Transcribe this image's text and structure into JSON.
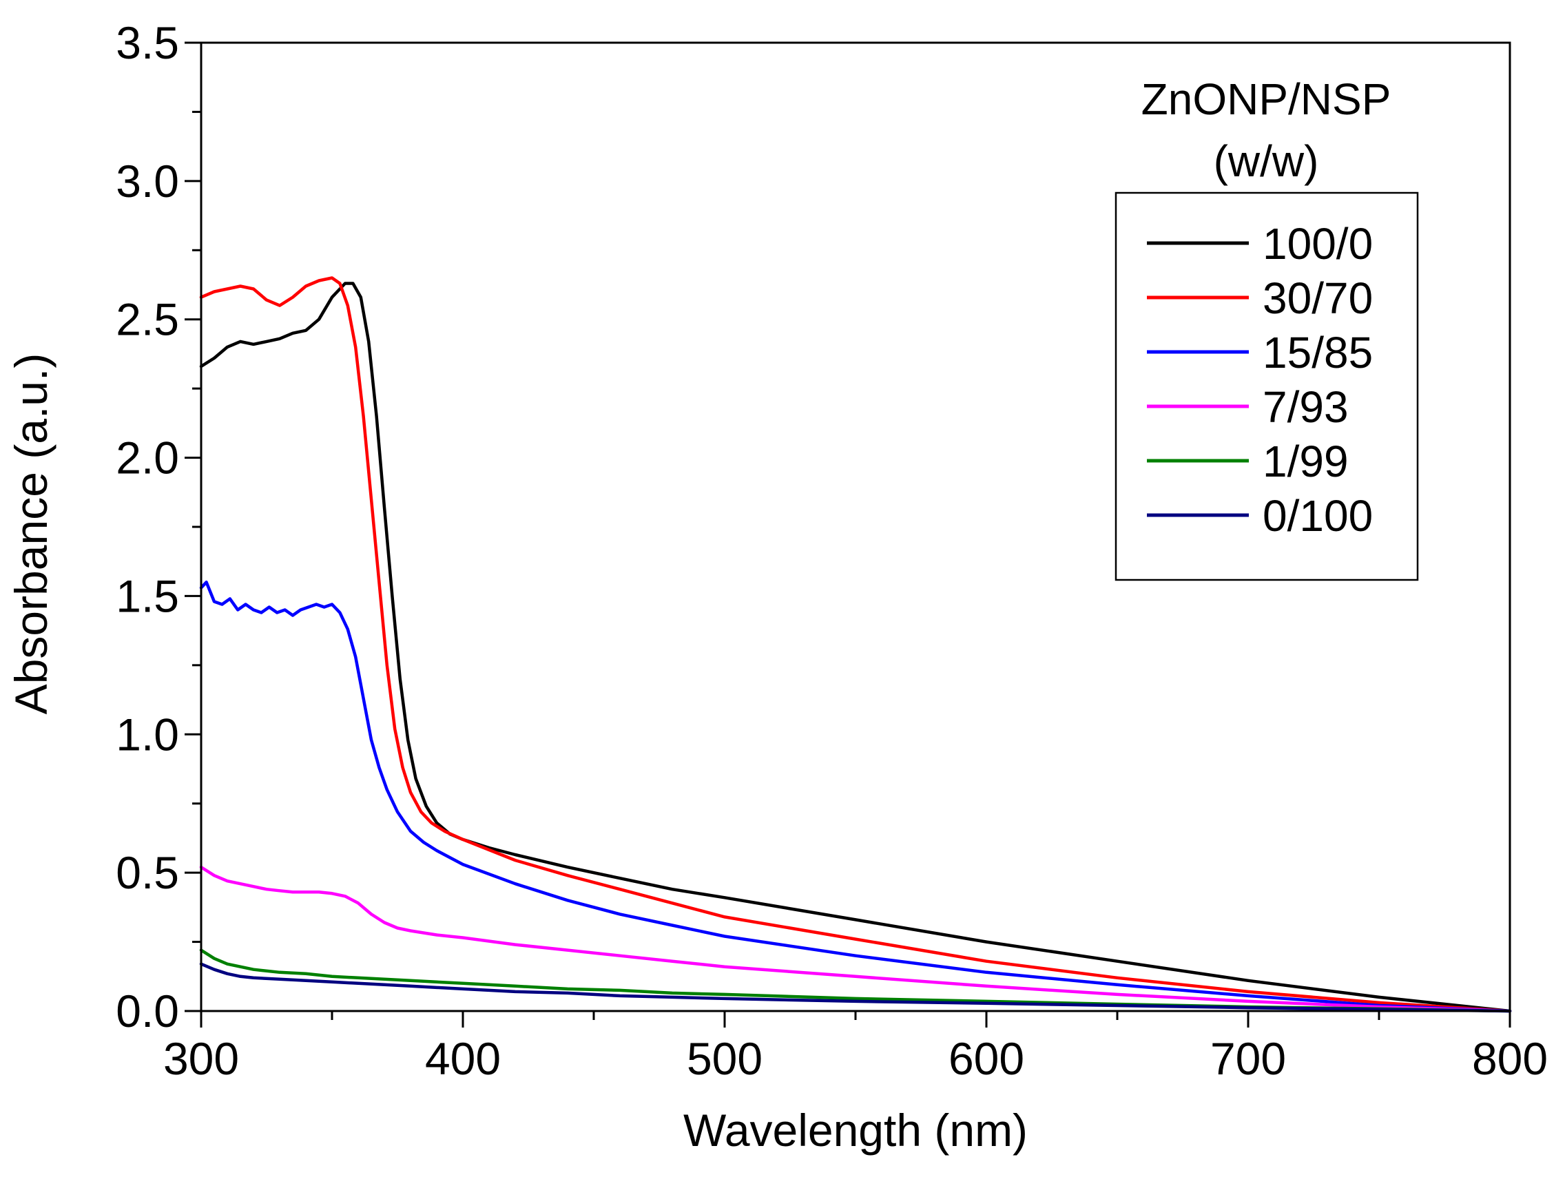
{
  "chart_data": {
    "type": "line",
    "title": "",
    "xlabel": "Wavelength (nm)",
    "ylabel": "Absorbance (a.u.)",
    "xlim": [
      300,
      800
    ],
    "ylim": [
      0,
      3.5
    ],
    "x_ticks": [
      300,
      400,
      500,
      600,
      700,
      800
    ],
    "x_tick_labels": [
      "300",
      "400",
      "500",
      "600",
      "700",
      "800"
    ],
    "y_ticks": [
      0,
      0.5,
      1.0,
      1.5,
      2.0,
      2.5,
      3.0,
      3.5
    ],
    "y_tick_labels": [
      "0.0",
      "0.5",
      "1.0",
      "1.5",
      "2.0",
      "2.5",
      "3.0",
      "3.5"
    ],
    "grid": false,
    "legend": {
      "title_line1": "ZnONP/NSP",
      "title_line2": "(w/w)",
      "placement": "top-right"
    },
    "series": [
      {
        "name": "100/0",
        "color": "#000000",
        "points": [
          [
            300,
            2.33
          ],
          [
            305,
            2.36
          ],
          [
            310,
            2.4
          ],
          [
            315,
            2.42
          ],
          [
            320,
            2.41
          ],
          [
            325,
            2.42
          ],
          [
            330,
            2.43
          ],
          [
            335,
            2.45
          ],
          [
            340,
            2.46
          ],
          [
            345,
            2.5
          ],
          [
            350,
            2.58
          ],
          [
            355,
            2.63
          ],
          [
            358,
            2.63
          ],
          [
            361,
            2.58
          ],
          [
            364,
            2.42
          ],
          [
            367,
            2.15
          ],
          [
            370,
            1.82
          ],
          [
            373,
            1.5
          ],
          [
            376,
            1.2
          ],
          [
            379,
            0.98
          ],
          [
            382,
            0.84
          ],
          [
            386,
            0.74
          ],
          [
            390,
            0.68
          ],
          [
            395,
            0.64
          ],
          [
            400,
            0.62
          ],
          [
            410,
            0.59
          ],
          [
            420,
            0.565
          ],
          [
            440,
            0.52
          ],
          [
            460,
            0.48
          ],
          [
            480,
            0.44
          ],
          [
            500,
            0.41
          ],
          [
            550,
            0.33
          ],
          [
            600,
            0.25
          ],
          [
            650,
            0.18
          ],
          [
            700,
            0.11
          ],
          [
            750,
            0.05
          ],
          [
            800,
            0.0
          ]
        ]
      },
      {
        "name": "30/70",
        "color": "#ff0000",
        "points": [
          [
            300,
            2.58
          ],
          [
            305,
            2.6
          ],
          [
            310,
            2.61
          ],
          [
            315,
            2.62
          ],
          [
            320,
            2.61
          ],
          [
            325,
            2.57
          ],
          [
            330,
            2.55
          ],
          [
            335,
            2.58
          ],
          [
            340,
            2.62
          ],
          [
            345,
            2.64
          ],
          [
            350,
            2.65
          ],
          [
            353,
            2.63
          ],
          [
            356,
            2.55
          ],
          [
            359,
            2.4
          ],
          [
            362,
            2.15
          ],
          [
            365,
            1.85
          ],
          [
            368,
            1.55
          ],
          [
            371,
            1.25
          ],
          [
            374,
            1.02
          ],
          [
            377,
            0.88
          ],
          [
            380,
            0.79
          ],
          [
            384,
            0.72
          ],
          [
            388,
            0.68
          ],
          [
            393,
            0.65
          ],
          [
            400,
            0.62
          ],
          [
            420,
            0.545
          ],
          [
            440,
            0.49
          ],
          [
            460,
            0.44
          ],
          [
            480,
            0.39
          ],
          [
            500,
            0.34
          ],
          [
            550,
            0.26
          ],
          [
            600,
            0.18
          ],
          [
            650,
            0.12
          ],
          [
            700,
            0.07
          ],
          [
            750,
            0.03
          ],
          [
            800,
            0.0
          ]
        ]
      },
      {
        "name": "15/85",
        "color": "#0000ff",
        "points": [
          [
            300,
            1.53
          ],
          [
            302,
            1.55
          ],
          [
            305,
            1.48
          ],
          [
            308,
            1.47
          ],
          [
            311,
            1.49
          ],
          [
            314,
            1.45
          ],
          [
            317,
            1.47
          ],
          [
            320,
            1.45
          ],
          [
            323,
            1.44
          ],
          [
            326,
            1.46
          ],
          [
            329,
            1.44
          ],
          [
            332,
            1.45
          ],
          [
            335,
            1.43
          ],
          [
            338,
            1.45
          ],
          [
            341,
            1.46
          ],
          [
            344,
            1.47
          ],
          [
            347,
            1.46
          ],
          [
            350,
            1.47
          ],
          [
            353,
            1.44
          ],
          [
            356,
            1.38
          ],
          [
            359,
            1.28
          ],
          [
            362,
            1.13
          ],
          [
            365,
            0.98
          ],
          [
            368,
            0.88
          ],
          [
            371,
            0.8
          ],
          [
            375,
            0.72
          ],
          [
            380,
            0.65
          ],
          [
            385,
            0.61
          ],
          [
            390,
            0.58
          ],
          [
            400,
            0.53
          ],
          [
            420,
            0.46
          ],
          [
            440,
            0.4
          ],
          [
            460,
            0.35
          ],
          [
            480,
            0.31
          ],
          [
            500,
            0.27
          ],
          [
            550,
            0.2
          ],
          [
            600,
            0.14
          ],
          [
            650,
            0.095
          ],
          [
            700,
            0.055
          ],
          [
            750,
            0.02
          ],
          [
            800,
            0.0
          ]
        ]
      },
      {
        "name": "7/93",
        "color": "#ff00ff",
        "points": [
          [
            300,
            0.52
          ],
          [
            305,
            0.49
          ],
          [
            310,
            0.47
          ],
          [
            315,
            0.46
          ],
          [
            320,
            0.45
          ],
          [
            325,
            0.44
          ],
          [
            330,
            0.435
          ],
          [
            335,
            0.43
          ],
          [
            340,
            0.43
          ],
          [
            345,
            0.43
          ],
          [
            350,
            0.425
          ],
          [
            355,
            0.415
          ],
          [
            360,
            0.39
          ],
          [
            365,
            0.35
          ],
          [
            370,
            0.32
          ],
          [
            375,
            0.3
          ],
          [
            380,
            0.29
          ],
          [
            390,
            0.275
          ],
          [
            400,
            0.265
          ],
          [
            420,
            0.24
          ],
          [
            440,
            0.22
          ],
          [
            460,
            0.2
          ],
          [
            480,
            0.18
          ],
          [
            500,
            0.16
          ],
          [
            550,
            0.125
          ],
          [
            600,
            0.09
          ],
          [
            650,
            0.06
          ],
          [
            700,
            0.035
          ],
          [
            750,
            0.015
          ],
          [
            800,
            0.0
          ]
        ]
      },
      {
        "name": "1/99",
        "color": "#008000",
        "points": [
          [
            300,
            0.22
          ],
          [
            305,
            0.19
          ],
          [
            310,
            0.17
          ],
          [
            315,
            0.16
          ],
          [
            320,
            0.15
          ],
          [
            330,
            0.14
          ],
          [
            340,
            0.135
          ],
          [
            350,
            0.125
          ],
          [
            360,
            0.12
          ],
          [
            380,
            0.11
          ],
          [
            400,
            0.1
          ],
          [
            420,
            0.09
          ],
          [
            440,
            0.08
          ],
          [
            460,
            0.075
          ],
          [
            480,
            0.065
          ],
          [
            500,
            0.06
          ],
          [
            550,
            0.045
          ],
          [
            600,
            0.035
          ],
          [
            650,
            0.025
          ],
          [
            700,
            0.015
          ],
          [
            750,
            0.008
          ],
          [
            800,
            0.0
          ]
        ]
      },
      {
        "name": "0/100",
        "color": "#000080",
        "points": [
          [
            300,
            0.17
          ],
          [
            305,
            0.15
          ],
          [
            310,
            0.135
          ],
          [
            315,
            0.125
          ],
          [
            320,
            0.12
          ],
          [
            330,
            0.115
          ],
          [
            340,
            0.11
          ],
          [
            350,
            0.105
          ],
          [
            360,
            0.1
          ],
          [
            380,
            0.09
          ],
          [
            400,
            0.08
          ],
          [
            420,
            0.07
          ],
          [
            440,
            0.065
          ],
          [
            460,
            0.055
          ],
          [
            480,
            0.05
          ],
          [
            500,
            0.045
          ],
          [
            550,
            0.035
          ],
          [
            600,
            0.028
          ],
          [
            650,
            0.02
          ],
          [
            700,
            0.012
          ],
          [
            750,
            0.006
          ],
          [
            800,
            0.0
          ]
        ]
      }
    ]
  }
}
